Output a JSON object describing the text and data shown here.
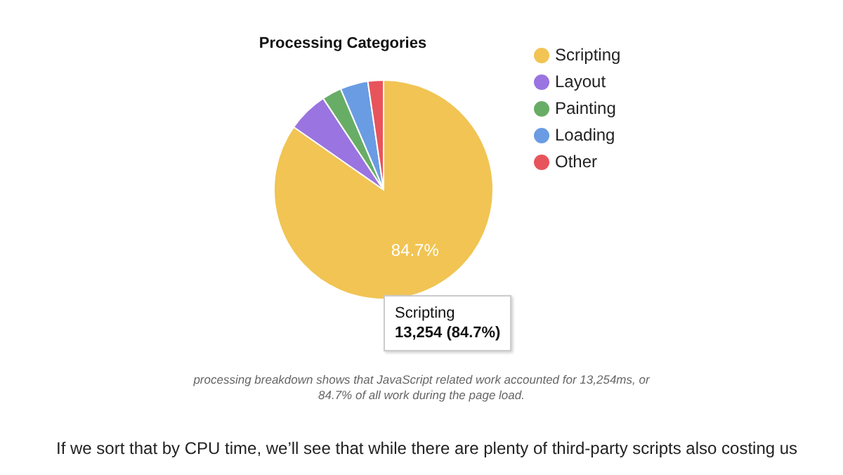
{
  "chart_data": {
    "type": "pie",
    "title": "Processing Categories",
    "categories": [
      "Scripting",
      "Layout",
      "Painting",
      "Loading",
      "Other"
    ],
    "values": [
      84.7,
      6.0,
      2.9,
      4.1,
      2.3
    ],
    "colors": [
      "#f1c453",
      "#9a74e0",
      "#68ad66",
      "#6a9ce3",
      "#e8545c"
    ],
    "value_labels": [
      "84.7%",
      null,
      null,
      null,
      null
    ],
    "legend": "right",
    "annotations": [
      "Scripting\n13,254 (84.7%)",
      "processing breakdown shows that JavaScript related work accounted for 13,254ms, or\n84.7% of all work during the page load.",
      "If we sort that by CPU time, we’ll see that while there are plenty of third-party scripts also costing us"
    ]
  }
}
